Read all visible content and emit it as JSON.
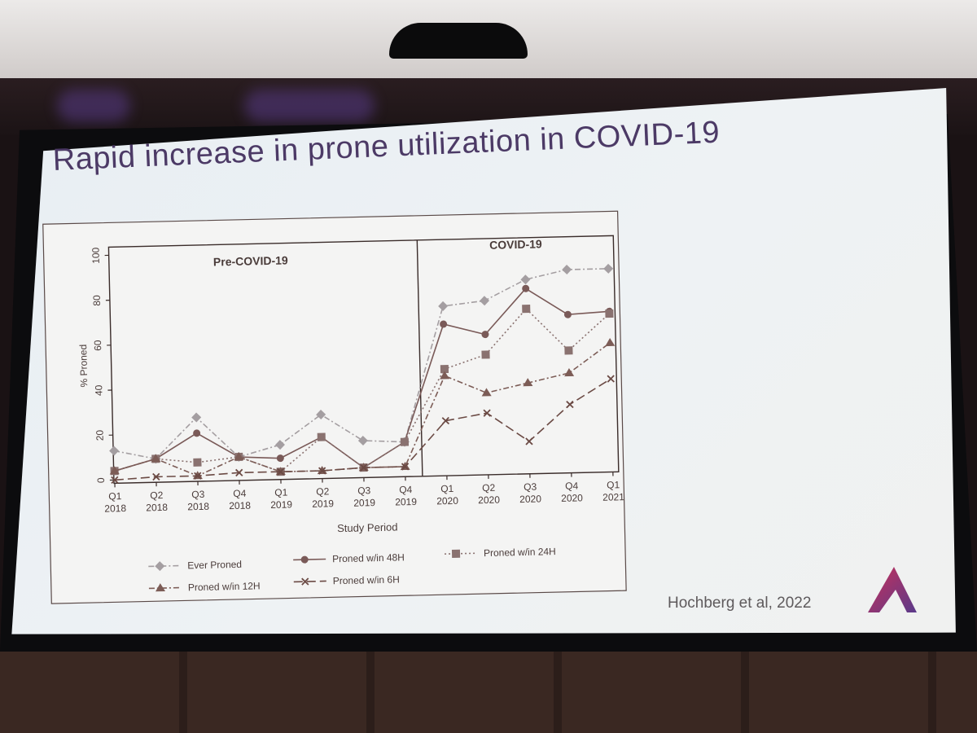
{
  "slide": {
    "title": "Rapid increase in prone utilization in COVID-19",
    "citation": "Hochberg et al, 2022"
  },
  "colors": {
    "ever": "#a49ea1",
    "h48": "#7a5a58",
    "h24": "#8a7270",
    "h12": "#7c5c56",
    "h6": "#6b4a44",
    "title": "#4c3a66"
  },
  "chart_data": {
    "type": "line",
    "panels": [
      "Pre-COVID-19",
      "COVID-19"
    ],
    "xlabel": "Study Period",
    "ylabel": "% Proned",
    "ylim": [
      0,
      100
    ],
    "yticks": [
      0,
      20,
      40,
      60,
      80,
      100
    ],
    "categories": [
      [
        "Q1",
        "2018"
      ],
      [
        "Q2",
        "2018"
      ],
      [
        "Q3",
        "2018"
      ],
      [
        "Q4",
        "2018"
      ],
      [
        "Q1",
        "2019"
      ],
      [
        "Q2",
        "2019"
      ],
      [
        "Q3",
        "2019"
      ],
      [
        "Q4",
        "2019"
      ],
      [
        "Q1",
        "2020"
      ],
      [
        "Q2",
        "2020"
      ],
      [
        "Q3",
        "2020"
      ],
      [
        "Q4",
        "2020"
      ],
      [
        "Q1",
        "2021"
      ]
    ],
    "series": [
      {
        "name": "Ever Proned",
        "marker": "diamond",
        "dash": "dash-dot",
        "color_key": "ever",
        "values": [
          13,
          9,
          27,
          9,
          14,
          27,
          15,
          14,
          74,
          76,
          85,
          89,
          89
        ]
      },
      {
        "name": "Proned w/in 48H",
        "marker": "circle",
        "dash": "solid",
        "color_key": "h48",
        "values": [
          4,
          9,
          20,
          9,
          8,
          17,
          3,
          14,
          66,
          61,
          81,
          69,
          70
        ]
      },
      {
        "name": "Proned w/in 24H",
        "marker": "square",
        "dash": "dotted",
        "color_key": "h24",
        "values": [
          4,
          9,
          7,
          9,
          2,
          17,
          3,
          14,
          46,
          52,
          72,
          53,
          69
        ]
      },
      {
        "name": "Proned w/in 12H",
        "marker": "triangle",
        "dash": "dash-dot",
        "color_key": "h12",
        "values": [
          4,
          9,
          1,
          9,
          2,
          2,
          3,
          3,
          43,
          35,
          39,
          43,
          56
        ]
      },
      {
        "name": "Proned w/in 6H",
        "marker": "x",
        "dash": "long-dash",
        "color_key": "h6",
        "values": [
          0,
          1,
          1,
          2,
          2,
          2,
          3,
          3,
          23,
          26,
          13,
          29,
          40
        ]
      }
    ],
    "legend": "bottom"
  }
}
